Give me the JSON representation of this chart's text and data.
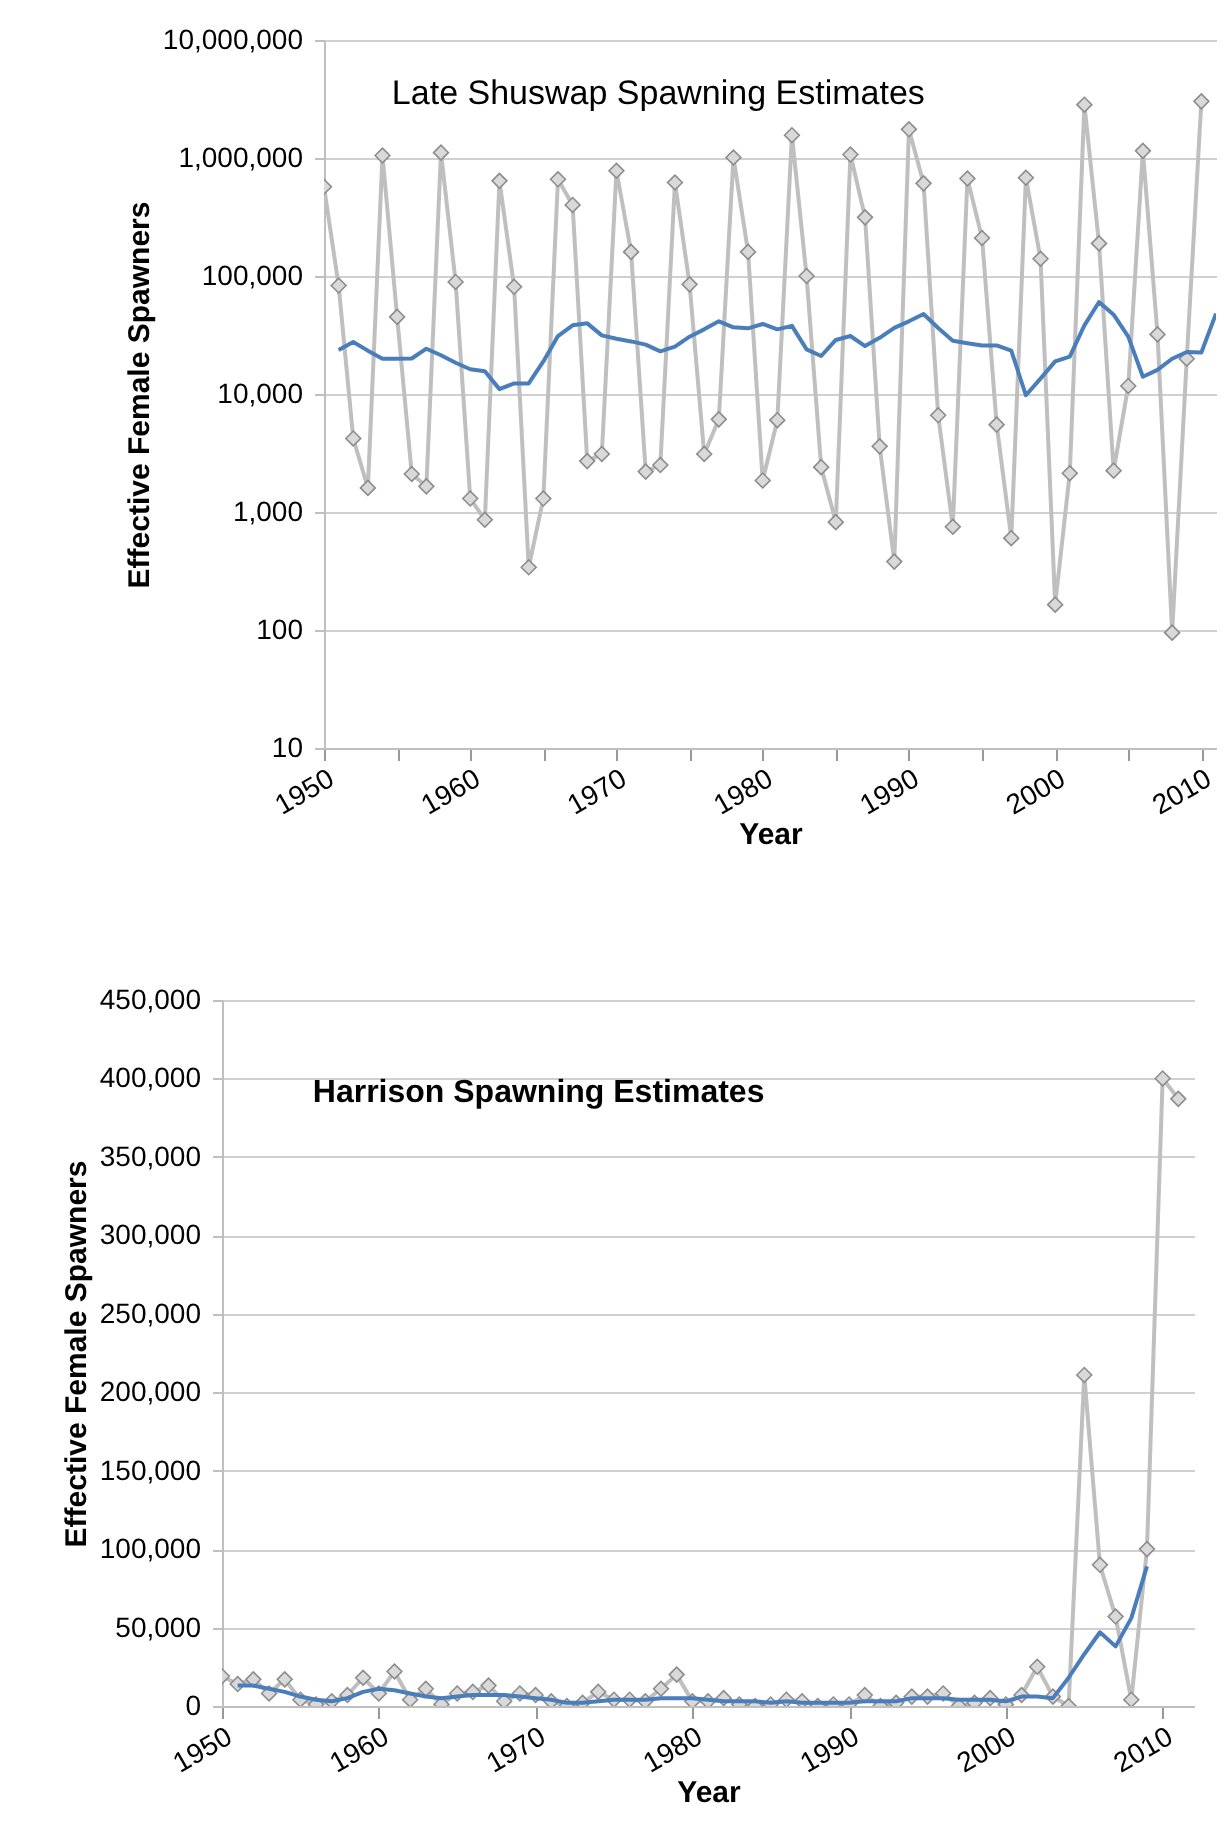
{
  "chart_data": [
    {
      "type": "line",
      "title": "Late Shuswap Spawning Estimates",
      "xlabel": "Year",
      "ylabel": "Effective Female Spawners",
      "log": "y",
      "grid": "y",
      "xlim": [
        1950,
        2011
      ],
      "xticks": [
        1950,
        {
          "value": 1955,
          "label": null
        },
        1960,
        {
          "value": 1965,
          "label": null
        },
        1970,
        {
          "value": 1975,
          "label": null
        },
        1980,
        {
          "value": 1985,
          "label": null
        },
        1990,
        {
          "value": 1995,
          "label": null
        },
        2000,
        {
          "value": 2005,
          "label": null
        },
        2010
      ],
      "ylim": [
        10,
        10000000
      ],
      "yticks": [
        10,
        100,
        {
          "value": 1000,
          "label": "1,000"
        },
        {
          "value": 10000,
          "label": "10,000"
        },
        {
          "value": 100000,
          "label": "100,000"
        },
        {
          "value": 1000000,
          "label": "1,000,000"
        },
        {
          "value": 10000000,
          "label": "10,000,000"
        }
      ],
      "series": [
        {
          "color": "#bfbfbf",
          "marker": "diamond",
          "x": [
            1950,
            1951,
            1952,
            1953,
            1954,
            1955,
            1956,
            1957,
            1958,
            1959,
            1960,
            1961,
            1962,
            1963,
            1964,
            1965,
            1966,
            1967,
            1968,
            1969,
            1970,
            1971,
            1972,
            1973,
            1974,
            1975,
            1976,
            1977,
            1978,
            1979,
            1980,
            1981,
            1982,
            1983,
            1984,
            1985,
            1986,
            1987,
            1988,
            1989,
            1990,
            1991,
            1992,
            1993,
            1994,
            1995,
            1996,
            1997,
            1998,
            1999,
            2000,
            2001,
            2002,
            2003,
            2004,
            2005,
            2006,
            2007,
            2008,
            2009,
            2010
          ],
          "values": [
            570000,
            83000,
            4200,
            1600,
            1050000,
            45000,
            2100,
            1650,
            1110000,
            89000,
            1300,
            860,
            640000,
            81000,
            340,
            1300,
            660000,
            400000,
            2700,
            3100,
            780000,
            160000,
            2200,
            2500,
            620000,
            85000,
            3100,
            6100,
            1010000,
            160000,
            1850,
            6000,
            1560000,
            100000,
            2400,
            820,
            1070000,
            314000,
            3600,
            380,
            1750000,
            610000,
            6600,
            750,
            670000,
            210000,
            5500,
            600,
            680000,
            140000,
            164,
            2130,
            2830000,
            189000,
            2240,
            11700,
            1150000,
            32000,
            95,
            19900,
            3020000
          ]
        },
        {
          "color": "#4a7ebb",
          "marker": "none",
          "x": [
            1951,
            1952,
            1953,
            1954,
            1955,
            1956,
            1957,
            1958,
            1959,
            1960,
            1961,
            1962,
            1963,
            1964,
            1965,
            1966,
            1967,
            1968,
            1969,
            1970,
            1971,
            1972,
            1973,
            1974,
            1975,
            1976,
            1977,
            1978,
            1979,
            1980,
            1981,
            1982,
            1983,
            1984,
            1985,
            1986,
            1987,
            1988,
            1989,
            1990,
            1991,
            1992,
            1993,
            1994,
            1995,
            1996,
            1997,
            1998,
            1999,
            2000,
            2001,
            2002,
            2003,
            2004,
            2005,
            2006,
            2007,
            2008,
            2009,
            2010,
            2011
          ],
          "values": [
            23600,
            27600,
            23300,
            19900,
            19900,
            20000,
            24200,
            21300,
            18400,
            16200,
            15600,
            11000,
            12300,
            12300,
            18900,
            31000,
            38200,
            39700,
            31400,
            29400,
            27900,
            26200,
            23000,
            25200,
            30600,
            35300,
            41300,
            36700,
            36000,
            39200,
            35300,
            37800,
            23900,
            21000,
            28700,
            31000,
            25500,
            29900,
            36300,
            41300,
            47600,
            36300,
            28300,
            26900,
            25800,
            25800,
            23300,
            9750,
            13500,
            18900,
            20700,
            38200,
            60200,
            47000,
            30600,
            14000,
            16000,
            19900,
            22700,
            22500,
            48000
          ]
        }
      ]
    },
    {
      "type": "line",
      "title": "Harrison Spawning  Estimates",
      "xlabel": "Year",
      "ylabel": "Effective Female Spawners",
      "grid": "y",
      "xlim": [
        1950,
        2012
      ],
      "xticks": [
        1950,
        1960,
        1970,
        1980,
        1990,
        2000,
        2010
      ],
      "ylim": [
        0,
        450000
      ],
      "yticks": [
        0,
        {
          "value": 50000,
          "label": "50,000"
        },
        {
          "value": 100000,
          "label": "100,000"
        },
        {
          "value": 150000,
          "label": "150,000"
        },
        {
          "value": 200000,
          "label": "200,000"
        },
        {
          "value": 250000,
          "label": "250,000"
        },
        {
          "value": 300000,
          "label": "300,000"
        },
        {
          "value": 350000,
          "label": "350,000"
        },
        {
          "value": 400000,
          "label": "400,000"
        },
        {
          "value": 450000,
          "label": "450,000"
        }
      ],
      "series": [
        {
          "color": "#bfbfbf",
          "marker": "diamond",
          "x": [
            1950,
            1951,
            1952,
            1953,
            1954,
            1955,
            1956,
            1957,
            1958,
            1959,
            1960,
            1961,
            1962,
            1963,
            1964,
            1965,
            1966,
            1967,
            1968,
            1969,
            1970,
            1971,
            1972,
            1973,
            1974,
            1975,
            1976,
            1977,
            1978,
            1979,
            1980,
            1981,
            1982,
            1983,
            1984,
            1985,
            1986,
            1987,
            1988,
            1989,
            1990,
            1991,
            1992,
            1993,
            1994,
            1995,
            1996,
            1997,
            1998,
            1999,
            2000,
            2001,
            2002,
            2003,
            2004,
            2005,
            2006,
            2007,
            2008,
            2009,
            2010,
            2011
          ],
          "values": [
            19000,
            14000,
            17000,
            8000,
            17000,
            4000,
            1000,
            3000,
            7000,
            18000,
            8000,
            22000,
            4000,
            11000,
            1000,
            8000,
            9000,
            13000,
            3000,
            8000,
            7000,
            3000,
            0,
            2000,
            9000,
            4000,
            4000,
            3000,
            11000,
            20000,
            3000,
            3000,
            5000,
            1000,
            0,
            1000,
            4000,
            3000,
            0,
            1000,
            1000,
            7000,
            0,
            2000,
            6000,
            6000,
            8000,
            0,
            2000,
            5000,
            1000,
            7000,
            25000,
            6000,
            0,
            211000,
            90000,
            57000,
            4000,
            100000,
            400000,
            387000
          ]
        },
        {
          "color": "#4a7ebb",
          "marker": "none",
          "x": [
            1951,
            1952,
            1953,
            1954,
            1955,
            1956,
            1957,
            1958,
            1959,
            1960,
            1961,
            1962,
            1963,
            1964,
            1965,
            1966,
            1967,
            1968,
            1969,
            1970,
            1971,
            1972,
            1973,
            1974,
            1975,
            1976,
            1977,
            1978,
            1979,
            1980,
            1981,
            1982,
            1983,
            1984,
            1985,
            1986,
            1987,
            1988,
            1989,
            1990,
            1991,
            1992,
            1993,
            1994,
            1995,
            1996,
            1997,
            1998,
            1999,
            2000,
            2001,
            2002,
            2003,
            2004,
            2005,
            2006,
            2007,
            2008,
            2009
          ],
          "values": [
            13000,
            13000,
            11000,
            9000,
            6000,
            4000,
            3000,
            5000,
            9000,
            11000,
            10000,
            8000,
            6000,
            5000,
            6000,
            7000,
            7000,
            7000,
            6000,
            5000,
            4000,
            2000,
            2000,
            3000,
            4000,
            4000,
            4000,
            5000,
            5000,
            5000,
            4000,
            3000,
            3000,
            3000,
            2000,
            3000,
            2000,
            2000,
            2000,
            2000,
            3000,
            3000,
            3000,
            5000,
            5000,
            5000,
            4000,
            4000,
            4000,
            3000,
            6000,
            6000,
            5000,
            18000,
            33000,
            47000,
            38000,
            56000,
            89000
          ]
        }
      ]
    }
  ]
}
